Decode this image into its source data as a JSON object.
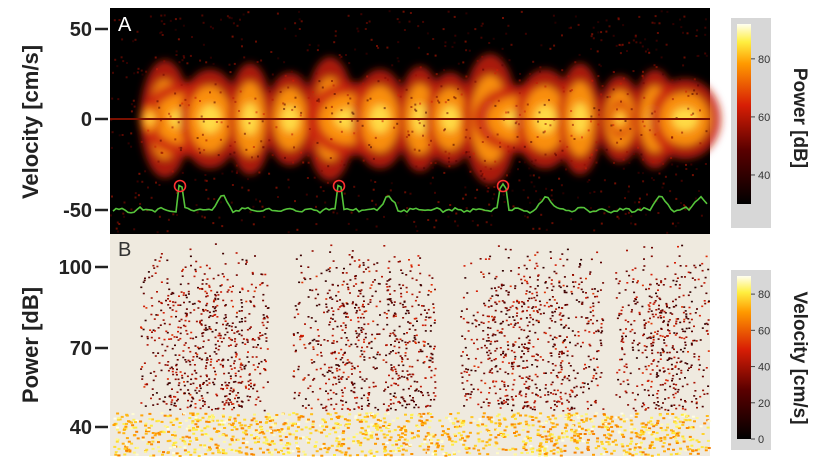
{
  "chart_data": [
    {
      "type": "heatmap",
      "panel": "A",
      "ylabel": "Velocity [cm/s]",
      "yticks": [
        50,
        0,
        -50
      ],
      "ylim": [
        -60,
        60
      ],
      "colorbar": {
        "label": "Power [dB]",
        "ticks": [
          80,
          60,
          40
        ],
        "range": [
          30,
          92
        ]
      },
      "beat_markers": 3,
      "ecg_trace": true
    },
    {
      "type": "heatmap",
      "panel": "B",
      "ylabel": "Power [dB]",
      "yticks": [
        100,
        70,
        40
      ],
      "ylim": [
        35,
        115
      ],
      "colorbar": {
        "label": "Velocity [cm/s]",
        "ticks": [
          80,
          60,
          40,
          20,
          0
        ],
        "range": [
          0,
          90
        ]
      }
    }
  ],
  "colors": {
    "panel_a_background": "#000000",
    "panel_b_background": "#efeadf",
    "ecg": "#55c43a",
    "marker": "#ff3030"
  }
}
